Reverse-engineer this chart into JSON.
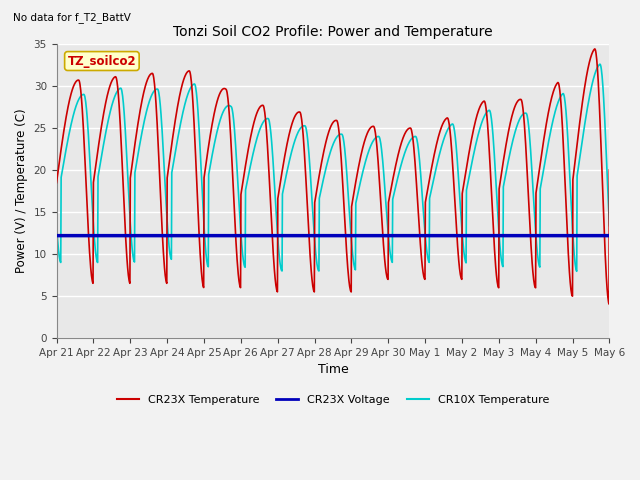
{
  "title": "Tonzi Soil CO2 Profile: Power and Temperature",
  "subtitle": "No data for f_T2_BattV",
  "xlabel": "Time",
  "ylabel": "Power (V) / Temperature (C)",
  "ylim": [
    0,
    35
  ],
  "yticks": [
    0,
    5,
    10,
    15,
    20,
    25,
    30,
    35
  ],
  "x_labels": [
    "Apr 21",
    "Apr 22",
    "Apr 23",
    "Apr 24",
    "Apr 25",
    "Apr 26",
    "Apr 27",
    "Apr 28",
    "Apr 29",
    "Apr 30",
    "May 1",
    "May 2",
    "May 3",
    "May 4",
    "May 5",
    "May 6"
  ],
  "legend": [
    {
      "label": "CR23X Temperature",
      "color": "#cc0000",
      "lw": 1.2
    },
    {
      "label": "CR23X Voltage",
      "color": "#0000bb",
      "lw": 2.5
    },
    {
      "label": "CR10X Temperature",
      "color": "#00cccc",
      "lw": 1.2
    }
  ],
  "annotation_box": {
    "text": "TZ_soilco2",
    "facecolor": "#ffffcc",
    "edgecolor": "#ccaa00"
  },
  "bg_color": "#e8e8e8",
  "grid_color": "#ffffff",
  "voltage_value": 12.2,
  "fig_bg": "#f2f2f2"
}
